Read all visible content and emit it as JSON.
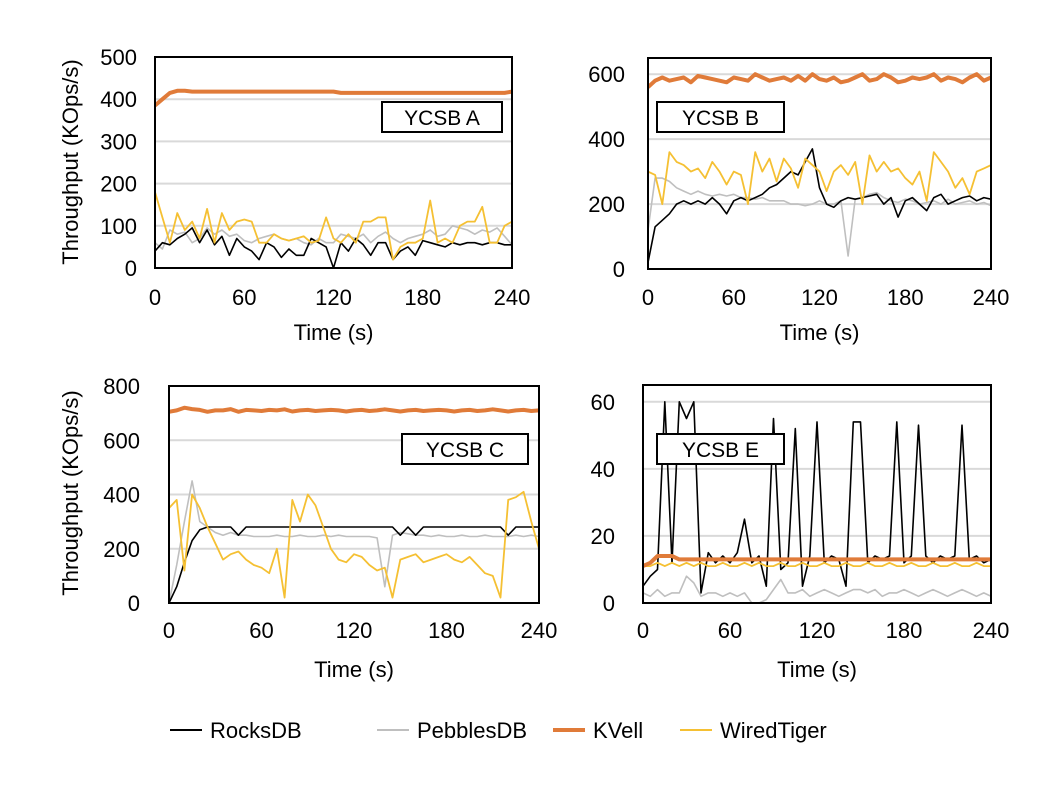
{
  "legend": [
    {
      "name": "RocksDB",
      "color": "#000000"
    },
    {
      "name": "PebblesDB",
      "color": "#bfbfbf"
    },
    {
      "name": "KVell",
      "color": "#e07b39"
    },
    {
      "name": "WiredTiger",
      "color": "#f5c033"
    }
  ],
  "chart_data": [
    {
      "type": "line",
      "title": "YCSB A",
      "xlabel": "Time (s)",
      "ylabel": "Throughput (KOps/s)",
      "xlim": [
        0,
        240
      ],
      "ylim": [
        0,
        500
      ],
      "xticks": [
        "0",
        "60",
        "120",
        "180",
        "240"
      ],
      "yticks": [
        "0",
        "100",
        "200",
        "300",
        "400",
        "500"
      ],
      "grid": true,
      "x": [
        0,
        5,
        10,
        15,
        20,
        25,
        30,
        35,
        40,
        45,
        50,
        55,
        60,
        65,
        70,
        75,
        80,
        85,
        90,
        95,
        100,
        105,
        110,
        115,
        120,
        125,
        130,
        135,
        140,
        145,
        150,
        155,
        160,
        165,
        170,
        175,
        180,
        185,
        190,
        195,
        200,
        205,
        210,
        215,
        220,
        225,
        230,
        235,
        240
      ],
      "series": [
        {
          "name": "RocksDB",
          "values": [
            40,
            60,
            55,
            70,
            80,
            95,
            60,
            90,
            55,
            75,
            30,
            70,
            50,
            40,
            20,
            60,
            50,
            25,
            45,
            30,
            30,
            70,
            60,
            50,
            0,
            60,
            40,
            70,
            55,
            30,
            60,
            60,
            20,
            40,
            50,
            30,
            65,
            60,
            55,
            50,
            60,
            55,
            60,
            60,
            55,
            60,
            60,
            55,
            55
          ]
        },
        {
          "name": "PebblesDB",
          "values": [
            60,
            45,
            90,
            80,
            85,
            60,
            70,
            95,
            80,
            90,
            75,
            80,
            65,
            60,
            70,
            75,
            80,
            70,
            65,
            70,
            60,
            55,
            70,
            60,
            60,
            80,
            75,
            70,
            80,
            60,
            75,
            85,
            70,
            60,
            70,
            75,
            80,
            90,
            75,
            80,
            100,
            95,
            90,
            80,
            90,
            85,
            95,
            75,
            55
          ]
        },
        {
          "name": "KVell",
          "values": [
            385,
            400,
            415,
            420,
            420,
            418,
            418,
            418,
            418,
            418,
            418,
            418,
            418,
            418,
            418,
            418,
            418,
            418,
            418,
            418,
            418,
            418,
            418,
            418,
            418,
            415,
            415,
            415,
            415,
            415,
            415,
            415,
            415,
            415,
            415,
            415,
            415,
            415,
            415,
            415,
            415,
            415,
            415,
            415,
            415,
            415,
            415,
            415,
            418
          ]
        },
        {
          "name": "WiredTiger",
          "values": [
            180,
            120,
            60,
            130,
            90,
            110,
            70,
            140,
            60,
            130,
            90,
            110,
            115,
            110,
            60,
            60,
            80,
            70,
            65,
            70,
            75,
            60,
            65,
            120,
            70,
            60,
            80,
            60,
            110,
            110,
            120,
            120,
            20,
            50,
            60,
            60,
            70,
            160,
            60,
            70,
            60,
            100,
            110,
            110,
            145,
            60,
            60,
            100,
            110
          ]
        }
      ]
    },
    {
      "type": "line",
      "title": "YCSB B",
      "xlabel": "Time (s)",
      "ylabel": "",
      "xlim": [
        0,
        240
      ],
      "ylim": [
        0,
        650
      ],
      "xticks": [
        "0",
        "60",
        "120",
        "180",
        "240"
      ],
      "yticks": [
        "0",
        "200",
        "400",
        "600"
      ],
      "grid": true,
      "x": [
        0,
        5,
        10,
        15,
        20,
        25,
        30,
        35,
        40,
        45,
        50,
        55,
        60,
        65,
        70,
        75,
        80,
        85,
        90,
        95,
        100,
        105,
        110,
        115,
        120,
        125,
        130,
        135,
        140,
        145,
        150,
        155,
        160,
        165,
        170,
        175,
        180,
        185,
        190,
        195,
        200,
        205,
        210,
        215,
        220,
        225,
        230,
        235,
        240
      ],
      "series": [
        {
          "name": "RocksDB",
          "values": [
            20,
            130,
            150,
            170,
            200,
            210,
            200,
            210,
            200,
            220,
            200,
            170,
            210,
            220,
            210,
            220,
            230,
            250,
            260,
            280,
            300,
            290,
            330,
            370,
            250,
            200,
            190,
            210,
            220,
            215,
            220,
            225,
            230,
            200,
            220,
            160,
            210,
            220,
            200,
            180,
            220,
            230,
            200,
            210,
            220,
            225,
            210,
            220,
            215
          ]
        },
        {
          "name": "PebblesDB",
          "values": [
            120,
            280,
            280,
            270,
            250,
            240,
            230,
            240,
            230,
            225,
            230,
            225,
            230,
            220,
            220,
            215,
            220,
            210,
            210,
            210,
            200,
            200,
            195,
            200,
            210,
            200,
            200,
            210,
            40,
            215,
            220,
            230,
            235,
            220,
            210,
            205,
            215,
            210,
            200,
            205,
            210,
            200,
            215,
            200,
            205,
            210,
            200,
            205,
            195
          ]
        },
        {
          "name": "KVell",
          "values": [
            560,
            580,
            590,
            580,
            585,
            590,
            575,
            595,
            590,
            585,
            580,
            575,
            590,
            585,
            580,
            600,
            590,
            580,
            585,
            590,
            580,
            595,
            580,
            600,
            585,
            580,
            590,
            575,
            580,
            590,
            600,
            580,
            585,
            600,
            590,
            575,
            580,
            590,
            585,
            590,
            600,
            580,
            590,
            585,
            575,
            590,
            600,
            580,
            590
          ]
        },
        {
          "name": "WiredTiger",
          "values": [
            300,
            290,
            200,
            360,
            330,
            320,
            300,
            310,
            280,
            330,
            300,
            260,
            300,
            290,
            200,
            360,
            300,
            340,
            270,
            340,
            310,
            250,
            340,
            320,
            300,
            240,
            300,
            320,
            290,
            330,
            200,
            350,
            300,
            330,
            300,
            310,
            280,
            260,
            300,
            210,
            360,
            330,
            300,
            250,
            280,
            230,
            300,
            310,
            320
          ]
        }
      ]
    },
    {
      "type": "line",
      "title": "YCSB C",
      "xlabel": "Time (s)",
      "ylabel": "Throughput (KOps/s)",
      "xlim": [
        0,
        240
      ],
      "ylim": [
        0,
        800
      ],
      "xticks": [
        "0",
        "60",
        "120",
        "180",
        "240"
      ],
      "yticks": [
        "0",
        "200",
        "400",
        "600",
        "800"
      ],
      "grid": true,
      "x": [
        0,
        5,
        10,
        15,
        20,
        25,
        30,
        35,
        40,
        45,
        50,
        55,
        60,
        65,
        70,
        75,
        80,
        85,
        90,
        95,
        100,
        105,
        110,
        115,
        120,
        125,
        130,
        135,
        140,
        145,
        150,
        155,
        160,
        165,
        170,
        175,
        180,
        185,
        190,
        195,
        200,
        205,
        210,
        215,
        220,
        225,
        230,
        235,
        240
      ],
      "series": [
        {
          "name": "RocksDB",
          "values": [
            0,
            60,
            150,
            230,
            270,
            280,
            280,
            280,
            280,
            250,
            280,
            280,
            280,
            280,
            280,
            280,
            280,
            280,
            280,
            280,
            280,
            280,
            280,
            280,
            280,
            280,
            280,
            280,
            280,
            280,
            250,
            280,
            250,
            280,
            280,
            280,
            280,
            280,
            280,
            280,
            280,
            280,
            280,
            280,
            250,
            280,
            280,
            280,
            280
          ]
        },
        {
          "name": "PebblesDB",
          "values": [
            0,
            140,
            300,
            450,
            300,
            280,
            260,
            250,
            260,
            250,
            250,
            245,
            245,
            245,
            250,
            245,
            245,
            250,
            245,
            245,
            250,
            245,
            250,
            245,
            245,
            245,
            245,
            240,
            60,
            250,
            260,
            255,
            250,
            250,
            245,
            250,
            245,
            245,
            250,
            245,
            245,
            250,
            245,
            245,
            245,
            250,
            245,
            250,
            245
          ]
        },
        {
          "name": "KVell",
          "values": [
            705,
            710,
            720,
            715,
            712,
            705,
            710,
            710,
            715,
            705,
            712,
            710,
            708,
            712,
            710,
            714,
            706,
            710,
            712,
            708,
            710,
            712,
            710,
            706,
            710,
            712,
            708,
            710,
            714,
            710,
            706,
            710,
            712,
            708,
            710,
            712,
            710,
            706,
            710,
            712,
            708,
            710,
            714,
            710,
            706,
            710,
            712,
            708,
            710
          ]
        },
        {
          "name": "WiredTiger",
          "values": [
            350,
            380,
            120,
            400,
            350,
            280,
            220,
            160,
            180,
            190,
            160,
            140,
            130,
            110,
            200,
            20,
            380,
            300,
            400,
            360,
            280,
            200,
            160,
            150,
            180,
            170,
            140,
            120,
            130,
            20,
            160,
            170,
            180,
            150,
            160,
            170,
            180,
            160,
            150,
            170,
            140,
            110,
            100,
            20,
            380,
            390,
            410,
            300,
            200
          ]
        }
      ]
    },
    {
      "type": "line",
      "title": "YCSB E",
      "xlabel": "Time (s)",
      "ylabel": "",
      "xlim": [
        0,
        240
      ],
      "ylim": [
        0,
        65
      ],
      "xticks": [
        "0",
        "60",
        "120",
        "180",
        "240"
      ],
      "yticks": [
        "0",
        "20",
        "40",
        "60"
      ],
      "grid": true,
      "x": [
        0,
        5,
        10,
        15,
        20,
        25,
        30,
        35,
        40,
        45,
        50,
        55,
        60,
        65,
        70,
        75,
        80,
        85,
        90,
        95,
        100,
        105,
        110,
        115,
        120,
        125,
        130,
        135,
        140,
        145,
        150,
        155,
        160,
        165,
        170,
        175,
        180,
        185,
        190,
        195,
        200,
        205,
        210,
        215,
        220,
        225,
        230,
        235,
        240
      ],
      "series": [
        {
          "name": "RocksDB",
          "values": [
            5,
            8,
            10,
            60,
            12,
            60,
            55,
            60,
            3,
            15,
            12,
            14,
            12,
            15,
            25,
            12,
            14,
            5,
            55,
            10,
            12,
            52,
            5,
            14,
            54,
            12,
            14,
            13,
            5,
            54,
            54,
            12,
            14,
            13,
            14,
            54,
            12,
            14,
            53,
            14,
            12,
            14,
            13,
            14,
            53,
            13,
            14,
            12,
            13
          ]
        },
        {
          "name": "PebblesDB",
          "values": [
            3,
            2,
            4,
            2,
            3,
            3,
            8,
            6,
            2,
            3,
            3,
            2,
            3,
            2,
            3,
            0,
            0,
            1,
            4,
            7,
            3,
            3,
            4,
            2,
            3,
            4,
            3,
            2,
            3,
            4,
            4,
            3,
            4,
            2,
            3,
            3,
            4,
            3,
            2,
            3,
            4,
            3,
            2,
            3,
            4,
            3,
            2,
            3,
            2
          ]
        },
        {
          "name": "KVell",
          "values": [
            11,
            12,
            14,
            14,
            14,
            13,
            13,
            13,
            13,
            13,
            13,
            13,
            13,
            13,
            13,
            13,
            13,
            13,
            13,
            13,
            13,
            13,
            13,
            13,
            13,
            13,
            13,
            13,
            13,
            13,
            13,
            13,
            13,
            13,
            13,
            13,
            13,
            13,
            13,
            13,
            13,
            13,
            13,
            13,
            13,
            13,
            13,
            13,
            13
          ]
        },
        {
          "name": "WiredTiger",
          "values": [
            11,
            11,
            12,
            11,
            12,
            11,
            12,
            11,
            12,
            11,
            11,
            12,
            11,
            11,
            12,
            11,
            12,
            11,
            11,
            12,
            11,
            11,
            12,
            11,
            11,
            12,
            11,
            11,
            12,
            11,
            11,
            12,
            11,
            11,
            12,
            11,
            11,
            12,
            11,
            11,
            12,
            11,
            11,
            12,
            11,
            11,
            12,
            11,
            11
          ]
        }
      ]
    }
  ]
}
